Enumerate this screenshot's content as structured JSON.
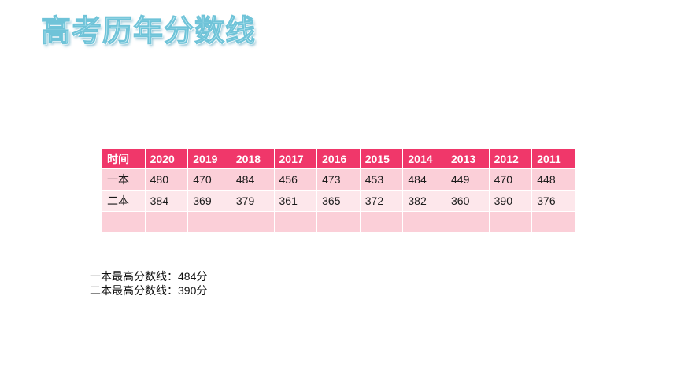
{
  "title": "高考历年分数线",
  "table": {
    "headers": [
      "时间",
      "2020",
      "2019",
      "2018",
      "2017",
      "2016",
      "2015",
      "2014",
      "2013",
      "2012",
      "2011"
    ],
    "rows": [
      {
        "label": "一本",
        "values": [
          "480",
          "470",
          "484",
          "456",
          "473",
          "453",
          "484",
          "449",
          "470",
          "448"
        ]
      },
      {
        "label": "二本",
        "values": [
          "384",
          "369",
          "379",
          "361",
          "365",
          "372",
          "382",
          "360",
          "390",
          "376"
        ]
      },
      {
        "label": "",
        "values": [
          "",
          "",
          "",
          "",
          "",
          "",
          "",
          "",
          "",
          ""
        ]
      }
    ]
  },
  "summary": {
    "line1": "一本最高分数线：484分",
    "line2": "二本最高分数线：390分"
  },
  "colors": {
    "header_bg": "#f0376a",
    "row_dark": "#fbcfd8",
    "row_light": "#fde7eb",
    "title_fill": "#c9eef6"
  }
}
